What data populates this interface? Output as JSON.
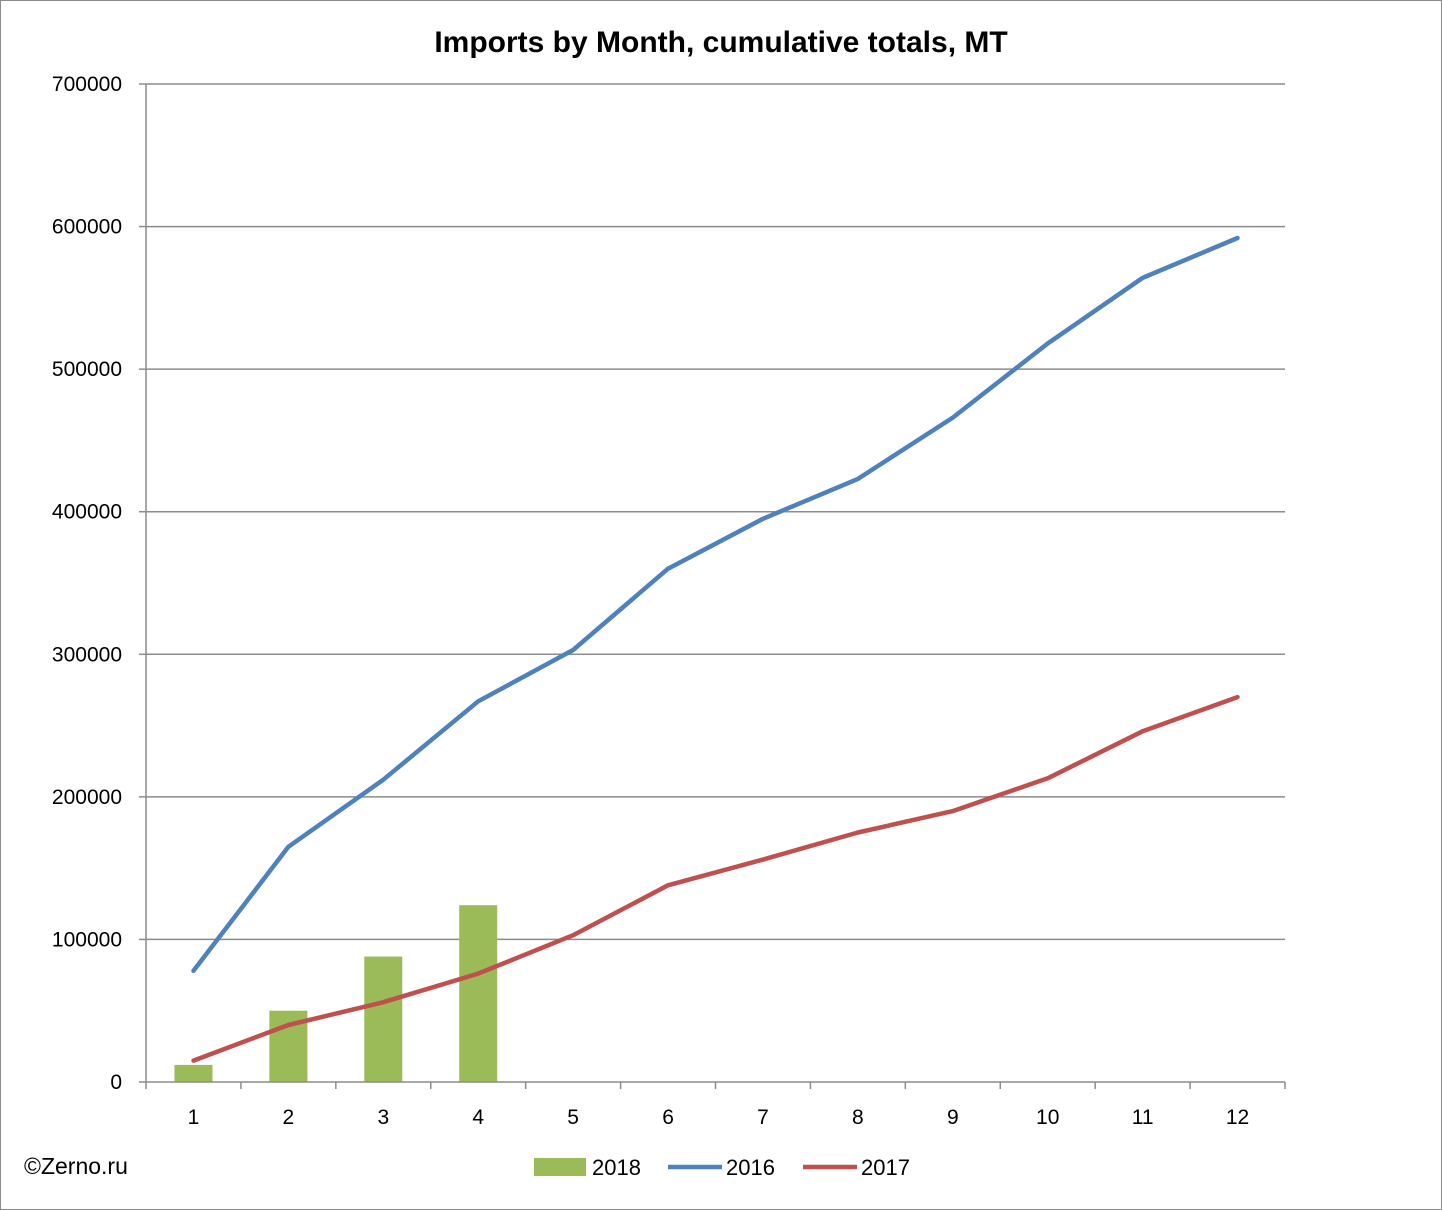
{
  "chart_data": {
    "type": "bar+line",
    "title": "Imports by Month, cumulative totals, MT",
    "xlabel": "",
    "ylabel": "",
    "categories": [
      "1",
      "2",
      "3",
      "4",
      "5",
      "6",
      "7",
      "8",
      "9",
      "10",
      "11",
      "12"
    ],
    "ylim": [
      0,
      700000
    ],
    "yticks": [
      0,
      100000,
      200000,
      300000,
      400000,
      500000,
      600000,
      700000
    ],
    "ytick_labels": [
      "0",
      "100000",
      "200000",
      "300000",
      "400000",
      "500000",
      "600000",
      "700000"
    ],
    "grid": true,
    "legend_position": "bottom",
    "series": [
      {
        "name": "2018",
        "type": "bar",
        "color": "#9bbb59",
        "values": [
          12000,
          50000,
          88000,
          124000,
          null,
          null,
          null,
          null,
          null,
          null,
          null,
          null
        ]
      },
      {
        "name": "2016",
        "type": "line",
        "color": "#4f81bd",
        "values": [
          78000,
          165000,
          212000,
          267000,
          303000,
          360000,
          395000,
          423000,
          466000,
          518000,
          564000,
          592000
        ]
      },
      {
        "name": "2017",
        "type": "line",
        "color": "#c0504d",
        "values": [
          15000,
          40000,
          56000,
          76000,
          103000,
          138000,
          156000,
          175000,
          190000,
          213000,
          246000,
          270000
        ]
      }
    ]
  },
  "credit": "©Zerno.ru"
}
